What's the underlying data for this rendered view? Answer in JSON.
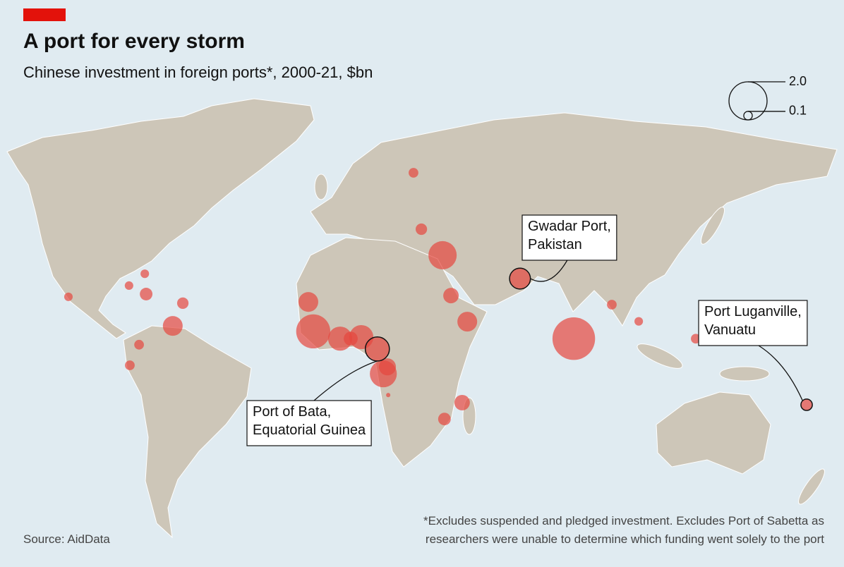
{
  "chart_data": {
    "type": "bubble-map",
    "title": "A port for every storm",
    "subtitle": "Chinese investment in foreign ports*, 2000-21, $bn",
    "color": "#e5473f",
    "size_legend": [
      {
        "value": 2,
        "label": "2.0"
      },
      {
        "value": 0.1,
        "label": "0.1"
      }
    ],
    "points": [
      {
        "lon": 23.1,
        "lat": 60.0,
        "value": 0.13
      },
      {
        "lon": 26.0,
        "lat": 41.4,
        "value": 0.18
      },
      {
        "lon": 33.8,
        "lat": 32.8,
        "value": 1.1
      },
      {
        "lon": 62.3,
        "lat": 25.1,
        "value": 0.6,
        "label": [
          "Gwadar Port,",
          "Pakistan"
        ]
      },
      {
        "lon": 36.9,
        "lat": 19.5,
        "value": 0.33
      },
      {
        "lon": 42.9,
        "lat": 10.9,
        "value": 0.54
      },
      {
        "lon": 82.1,
        "lat": 5.3,
        "value": 2.5
      },
      {
        "lon": 96.1,
        "lat": 16.5,
        "value": 0.13
      },
      {
        "lon": 106.0,
        "lat": 11.0,
        "value": 0.1
      },
      {
        "lon": 127.0,
        "lat": 5.3,
        "value": 0.13
      },
      {
        "lon": 167.8,
        "lat": -16.5,
        "value": 0.18,
        "label": [
          "Port Luganville,",
          "Vanuatu"
        ]
      },
      {
        "lon": 41.0,
        "lat": -15.8,
        "value": 0.33
      },
      {
        "lon": 34.5,
        "lat": -21.2,
        "value": 0.22
      },
      {
        "lon": 12.0,
        "lat": -6.3,
        "value": 1.0
      },
      {
        "lon": 13.5,
        "lat": -4.0,
        "value": 0.4
      },
      {
        "lon": 13.8,
        "lat": -13.3,
        "value": 0.025
      },
      {
        "lon": 9.8,
        "lat": 1.9,
        "value": 0.8,
        "label": [
          "Port of Bata,",
          "Equatorial Guinea"
        ]
      },
      {
        "lon": 3.9,
        "lat": 5.8,
        "value": 0.8
      },
      {
        "lon": -3.9,
        "lat": 5.3,
        "value": 0.8
      },
      {
        "lon": 0.0,
        "lat": 5.3,
        "value": 0.27
      },
      {
        "lon": -13.8,
        "lat": 7.7,
        "value": 1.6
      },
      {
        "lon": -15.6,
        "lat": 17.4,
        "value": 0.54
      },
      {
        "lon": -61.8,
        "lat": 17.0,
        "value": 0.18
      },
      {
        "lon": -65.5,
        "lat": 9.5,
        "value": 0.54
      },
      {
        "lon": -75.8,
        "lat": 26.7,
        "value": 0.1
      },
      {
        "lon": -75.3,
        "lat": 20.0,
        "value": 0.22
      },
      {
        "lon": -81.6,
        "lat": 22.8,
        "value": 0.1
      },
      {
        "lon": -103.9,
        "lat": 19.1,
        "value": 0.1
      },
      {
        "lon": -77.9,
        "lat": 3.3,
        "value": 0.13
      },
      {
        "lon": -81.3,
        "lat": -3.5,
        "value": 0.13
      }
    ],
    "footnote": [
      "*Excludes suspended and pledged investment. Excludes Port of Sabetta as",
      "researchers were unable to determine which funding went solely to the port"
    ],
    "source": "Source: AidData"
  }
}
